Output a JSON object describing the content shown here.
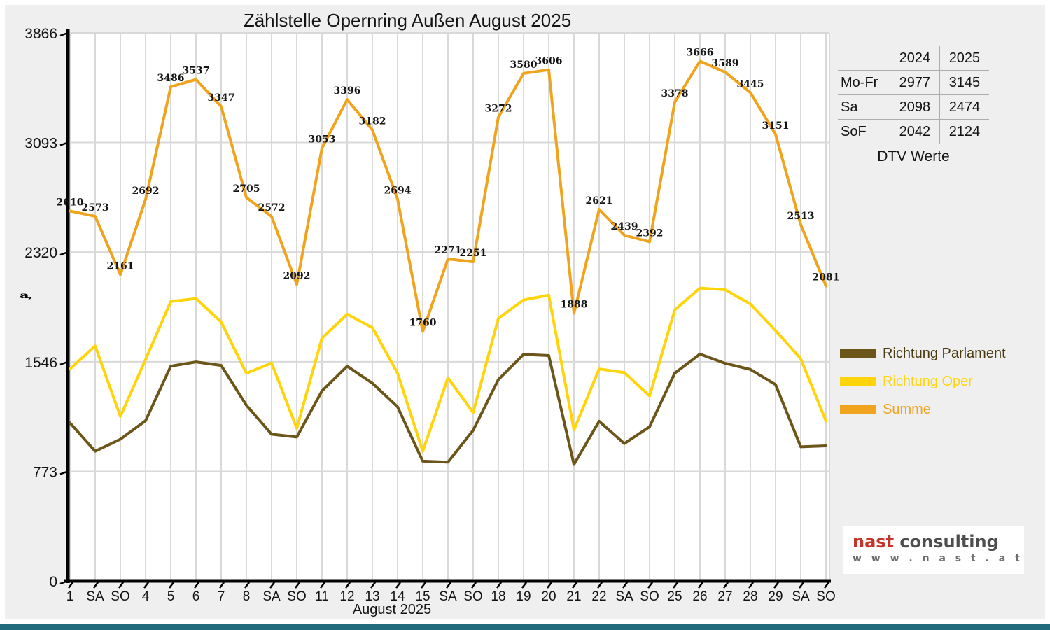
{
  "page": {
    "title": "Zählstelle Opernring Außen August 2025",
    "x_axis_title": "August 2025",
    "y_axis_side_glyph": "a,"
  },
  "colors": {
    "parlament": "#6b5518",
    "oper": "#ffd40a",
    "summe": "#f0a41e",
    "red_tick": "#e00000",
    "axis": "#000000",
    "grid": "#d9d9d9",
    "plot_bg": "#ffffff",
    "page_bg": "#efefef",
    "bottom_bar": "#226b7c",
    "logo_red": "#c4342b",
    "logo_gray": "#4d4d4d",
    "label_text": "#141414"
  },
  "chart_data": {
    "type": "line",
    "title": "Zählstelle Opernring Außen August 2025",
    "xlabel": "August 2025",
    "ylabel": "",
    "ylim": [
      0,
      3866
    ],
    "grid": true,
    "legend_position": "right",
    "y_ticks": [
      0,
      773,
      1546,
      2320,
      3093,
      3866
    ],
    "categories": [
      "1",
      "SA",
      "SO",
      "4",
      "5",
      "6",
      "7",
      "8",
      "SA",
      "SO",
      "11",
      "12",
      "13",
      "14",
      "15",
      "SA",
      "SO",
      "18",
      "19",
      "20",
      "21",
      "22",
      "SA",
      "SO",
      "25",
      "26",
      "27",
      "28",
      "29",
      "SA",
      "SO"
    ],
    "red_category_indices": [
      2,
      9,
      14,
      16,
      23,
      30
    ],
    "series": [
      {
        "name": "Richtung Parlament",
        "color_key": "parlament",
        "labeled": false,
        "values": [
          1115,
          915,
          1000,
          1130,
          1515,
          1545,
          1520,
          1240,
          1035,
          1015,
          1340,
          1515,
          1395,
          1228,
          845,
          838,
          1063,
          1420,
          1598,
          1590,
          822,
          1126,
          969,
          1087,
          1466,
          1600,
          1535,
          1492,
          1385,
          946,
          953
        ]
      },
      {
        "name": "Richtung Oper",
        "color_key": "oper",
        "labeled": false,
        "values": [
          1495,
          1658,
          1161,
          1562,
          1971,
          1992,
          1827,
          1465,
          1537,
          1077,
          1713,
          1881,
          1787,
          1466,
          915,
          1433,
          1188,
          1852,
          1982,
          2016,
          1066,
          1495,
          1470,
          1305,
          1912,
          2066,
          2054,
          1953,
          1766,
          1567,
          1128
        ]
      },
      {
        "name": "Summe",
        "color_key": "summe",
        "labeled": true,
        "values": [
          2610,
          2573,
          2161,
          2692,
          3486,
          3537,
          3347,
          2705,
          2572,
          2092,
          3053,
          3396,
          3182,
          2694,
          1760,
          2271,
          2251,
          3272,
          3580,
          3606,
          1888,
          2621,
          2439,
          2392,
          3378,
          3666,
          3589,
          3445,
          3151,
          2513,
          2081
        ]
      }
    ]
  },
  "legend": [
    {
      "label": "Richtung Parlament",
      "color_key": "parlament"
    },
    {
      "label": "Richtung Oper",
      "color_key": "oper"
    },
    {
      "label": "Summe",
      "color_key": "summe"
    }
  ],
  "table": {
    "caption": "DTV Werte",
    "columns": [
      "",
      "2024",
      "2025"
    ],
    "rows": [
      [
        "Mo-Fr",
        "2977",
        "3145"
      ],
      [
        "Sa",
        "2098",
        "2474"
      ],
      [
        "SoF",
        "2042",
        "2124"
      ]
    ]
  },
  "logo": {
    "brand_primary": "nast",
    "brand_secondary": " consulting",
    "website": "w w w . n a s t . a t"
  }
}
